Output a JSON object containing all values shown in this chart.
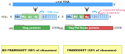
{
  "bg_color": "#ffffff",
  "title_rna": "viral RNA",
  "left_label": "NO FRAMESHIFT (90% of ribosomes)",
  "right_label": "FRAMESHIFT (10% of ribosomes)",
  "left_protein": "Gag protein",
  "right_protein": "Gag-Pol fusion protein",
  "frameshift_note": "-1 frameshift following\nLeu incorporation",
  "rna_color": "#4da6ff",
  "rna_stripe_color": "#6699cc",
  "gag_color": "#4caf50",
  "pol_color": "#e05050",
  "amino_phe": "Phe",
  "amino_leu": "Leu",
  "amino_gly": "Gly",
  "amino_arg": "Arg",
  "yellow_bg": "#ffffaa",
  "left_bg": "#e8f0e8",
  "right_bg": "#e8f0e8"
}
